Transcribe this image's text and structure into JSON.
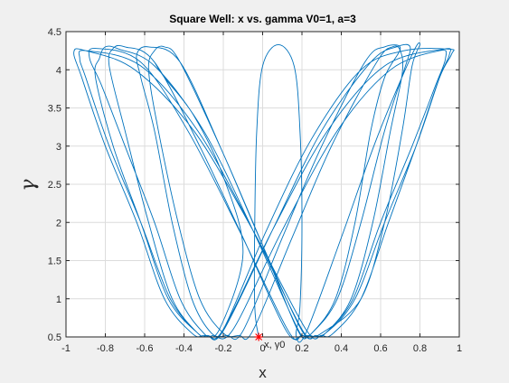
{
  "window": {
    "background": "#f0f0f0"
  },
  "chart_data": {
    "type": "line",
    "title": "Square Well: x vs. gamma V0=1, a=3",
    "xlabel": "x",
    "ylabel": "γ",
    "xlim": [
      -1,
      1
    ],
    "ylim": [
      0.5,
      4.5
    ],
    "xticks": [
      "-1",
      "-0.8",
      "-0.6",
      "-0.4",
      "-0.2",
      "0",
      "0.2",
      "0.4",
      "0.6",
      "0.8",
      "1"
    ],
    "yticks": [
      "0.5",
      "1",
      "1.5",
      "2",
      "2.5",
      "3",
      "3.5",
      "4",
      "4.5"
    ],
    "grid": true,
    "line_color": "#0072bd",
    "start_marker": {
      "x": -0.02,
      "y": 0.5,
      "color": "#ff0000",
      "label": "x, γ0"
    },
    "series": [
      {
        "points": [
          [
            -0.02,
            0.5
          ],
          [
            -0.04,
            0.9
          ],
          [
            -0.04,
            2.0
          ],
          [
            -0.03,
            3.2
          ],
          [
            0.0,
            4.05
          ],
          [
            0.08,
            4.33
          ],
          [
            0.16,
            4.05
          ],
          [
            0.19,
            3.2
          ],
          [
            0.2,
            2.0
          ],
          [
            0.19,
            0.9
          ],
          [
            0.17,
            0.52
          ],
          [
            0.22,
            0.55
          ],
          [
            0.4,
            1.8
          ],
          [
            0.58,
            3.1
          ],
          [
            0.76,
            4.2
          ],
          [
            0.8,
            4.33
          ],
          [
            0.76,
            4.05
          ],
          [
            0.71,
            3.2
          ],
          [
            0.62,
            2.0
          ],
          [
            0.5,
            1.0
          ],
          [
            0.3,
            0.55
          ],
          [
            0.24,
            0.52
          ],
          [
            0.18,
            0.58
          ],
          [
            0.0,
            1.7
          ],
          [
            -0.2,
            2.9
          ],
          [
            -0.42,
            4.1
          ],
          [
            -0.5,
            4.3
          ],
          [
            -0.55,
            4.25
          ],
          [
            -0.58,
            4.0
          ],
          [
            -0.53,
            3.2
          ],
          [
            -0.43,
            2.0
          ],
          [
            -0.32,
            1.0
          ],
          [
            -0.2,
            0.55
          ],
          [
            -0.12,
            0.52
          ],
          [
            -0.05,
            0.58
          ],
          [
            0.15,
            1.8
          ],
          [
            0.35,
            3.0
          ],
          [
            0.58,
            4.1
          ],
          [
            0.66,
            4.3
          ],
          [
            0.7,
            4.25
          ],
          [
            0.71,
            3.95
          ],
          [
            0.65,
            3.2
          ],
          [
            0.56,
            2.0
          ],
          [
            0.45,
            1.0
          ],
          [
            0.32,
            0.55
          ],
          [
            0.27,
            0.52
          ],
          [
            0.2,
            0.58
          ],
          [
            0.0,
            1.7
          ],
          [
            -0.2,
            2.9
          ],
          [
            -0.42,
            4.1
          ],
          [
            -0.58,
            4.3
          ],
          [
            -0.64,
            4.2
          ],
          [
            -0.62,
            3.9
          ],
          [
            -0.55,
            3.2
          ],
          [
            -0.46,
            2.0
          ],
          [
            -0.36,
            1.0
          ],
          [
            -0.26,
            0.55
          ],
          [
            -0.18,
            0.52
          ],
          [
            -0.1,
            0.58
          ],
          [
            0.1,
            1.8
          ],
          [
            0.3,
            3.0
          ],
          [
            0.52,
            4.1
          ],
          [
            0.62,
            4.3
          ],
          [
            0.7,
            4.28
          ],
          [
            0.62,
            3.9
          ],
          [
            0.55,
            3.2
          ],
          [
            0.47,
            2.0
          ],
          [
            0.37,
            1.0
          ],
          [
            0.25,
            0.55
          ],
          [
            0.2,
            0.52
          ],
          [
            0.12,
            0.58
          ],
          [
            -0.1,
            1.8
          ],
          [
            -0.32,
            3.0
          ],
          [
            -0.55,
            4.1
          ],
          [
            -0.7,
            4.3
          ],
          [
            -0.76,
            4.28
          ],
          [
            -0.78,
            4.05
          ],
          [
            -0.7,
            3.2
          ],
          [
            -0.58,
            2.0
          ],
          [
            -0.46,
            1.0
          ],
          [
            -0.33,
            0.55
          ],
          [
            -0.28,
            0.52
          ],
          [
            -0.2,
            0.58
          ],
          [
            0.05,
            1.9
          ],
          [
            0.3,
            3.2
          ],
          [
            0.55,
            4.1
          ],
          [
            0.68,
            4.3
          ],
          [
            0.75,
            4.3
          ],
          [
            0.72,
            4.0
          ],
          [
            0.62,
            3.2
          ],
          [
            0.5,
            2.0
          ],
          [
            0.38,
            1.0
          ],
          [
            0.25,
            0.55
          ],
          [
            0.2,
            0.52
          ],
          [
            0.13,
            0.58
          ],
          [
            -0.12,
            1.9
          ],
          [
            -0.38,
            3.2
          ],
          [
            -0.62,
            4.1
          ],
          [
            -0.85,
            4.28
          ],
          [
            -0.88,
            4.15
          ],
          [
            -0.82,
            3.8
          ],
          [
            -0.7,
            3.0
          ],
          [
            -0.55,
            2.0
          ],
          [
            -0.42,
            1.0
          ],
          [
            -0.3,
            0.55
          ],
          [
            -0.25,
            0.52
          ],
          [
            -0.15,
            0.6
          ],
          [
            0.1,
            1.9
          ],
          [
            0.38,
            3.2
          ],
          [
            0.65,
            4.0
          ],
          [
            0.9,
            4.25
          ],
          [
            0.93,
            4.15
          ],
          [
            0.88,
            3.8
          ],
          [
            0.76,
            3.0
          ],
          [
            0.6,
            2.0
          ],
          [
            0.46,
            1.0
          ],
          [
            0.32,
            0.55
          ],
          [
            0.27,
            0.52
          ],
          [
            0.2,
            0.6
          ],
          [
            -0.05,
            1.9
          ],
          [
            -0.33,
            3.2
          ],
          [
            -0.62,
            4.05
          ],
          [
            -0.9,
            4.25
          ],
          [
            -0.93,
            4.15
          ],
          [
            -0.9,
            3.9
          ],
          [
            -0.78,
            3.0
          ],
          [
            -0.62,
            2.0
          ],
          [
            -0.47,
            1.0
          ],
          [
            -0.33,
            0.55
          ],
          [
            -0.28,
            0.52
          ],
          [
            -0.2,
            0.6
          ],
          [
            0.05,
            1.9
          ],
          [
            0.33,
            3.2
          ],
          [
            0.62,
            4.05
          ],
          [
            0.92,
            4.27
          ],
          [
            0.95,
            4.2
          ],
          [
            0.9,
            3.9
          ],
          [
            0.78,
            3.0
          ],
          [
            0.62,
            2.0
          ],
          [
            0.47,
            1.0
          ],
          [
            0.32,
            0.55
          ],
          [
            0.23,
            0.52
          ],
          [
            0.18,
            0.6
          ],
          [
            -0.05,
            1.9
          ],
          [
            -0.3,
            3.2
          ],
          [
            -0.55,
            4.05
          ],
          [
            -0.73,
            4.27
          ],
          [
            -0.8,
            4.3
          ],
          [
            -0.83,
            4.15
          ],
          [
            -0.85,
            3.9
          ],
          [
            -0.76,
            3.0
          ],
          [
            -0.62,
            2.0
          ],
          [
            -0.48,
            1.0
          ],
          [
            -0.33,
            0.55
          ],
          [
            -0.28,
            0.52
          ],
          [
            -0.2,
            0.6
          ],
          [
            0.02,
            1.9
          ],
          [
            0.25,
            3.1
          ],
          [
            0.5,
            4.0
          ],
          [
            0.72,
            4.25
          ],
          [
            0.95,
            4.27
          ],
          [
            0.96,
            4.2
          ],
          [
            0.9,
            3.9
          ],
          [
            0.78,
            3.0
          ],
          [
            0.64,
            2.0
          ],
          [
            0.5,
            1.0
          ],
          [
            0.36,
            0.55
          ],
          [
            0.3,
            0.52
          ],
          [
            0.22,
            0.6
          ],
          [
            -0.05,
            1.9
          ],
          [
            -0.35,
            3.2
          ],
          [
            -0.65,
            4.0
          ],
          [
            -0.9,
            4.25
          ],
          [
            -0.96,
            4.23
          ],
          [
            -0.92,
            3.9
          ],
          [
            -0.8,
            3.0
          ],
          [
            -0.64,
            2.0
          ],
          [
            -0.5,
            1.0
          ],
          [
            -0.36,
            0.55
          ],
          [
            -0.3,
            0.52
          ],
          [
            -0.22,
            0.6
          ],
          [
            -0.1,
            1.6
          ],
          [
            -0.2,
            2.6
          ],
          [
            -0.35,
            3.4
          ],
          [
            -0.5,
            3.9
          ],
          [
            -0.55,
            4.1
          ]
        ]
      }
    ]
  }
}
